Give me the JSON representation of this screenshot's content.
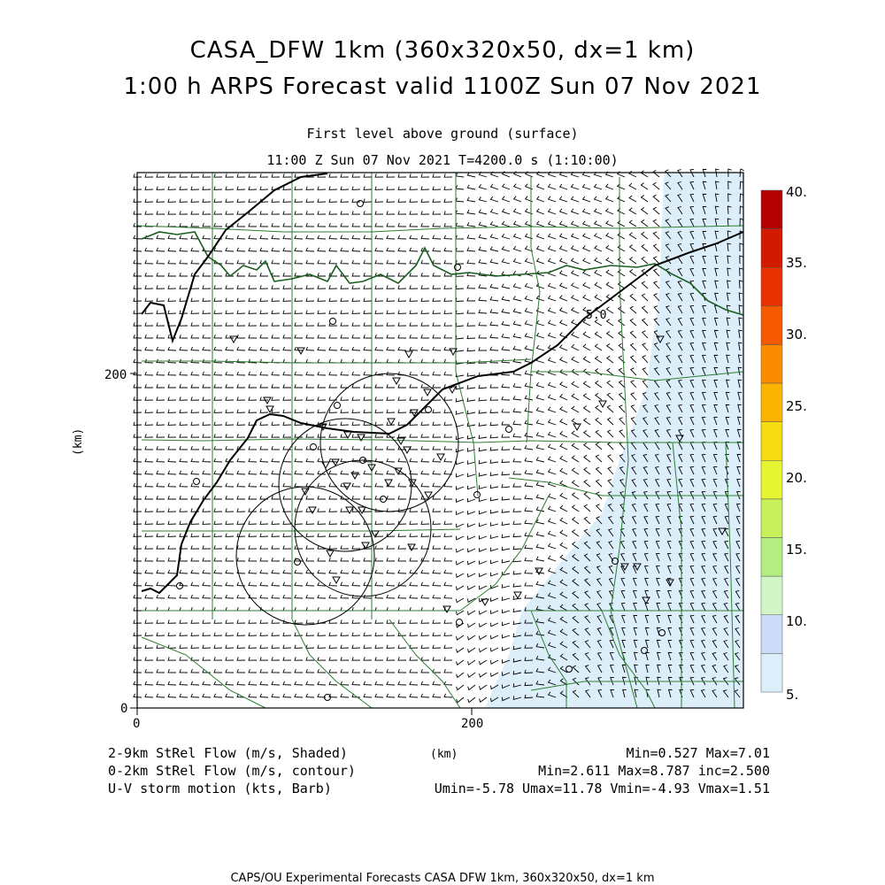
{
  "title": {
    "line1": "CASA_DFW 1km (360x320x50, dx=1 km)",
    "line2": "1:00 h ARPS Forecast valid 1100Z Sun 07 Nov 2021"
  },
  "subtitle": {
    "level": "First level above ground (surface)",
    "time": "11:00 Z Sun 07 Nov 2021    T=4200.0 s (1:10:00)"
  },
  "axes": {
    "x_label": "(km)",
    "y_label": "(km)",
    "x_ticks": [
      "0",
      "200"
    ],
    "y_ticks": [
      "0",
      "200"
    ]
  },
  "colorbar": {
    "labels": [
      "40.",
      "35.",
      "30.",
      "25.",
      "20.",
      "15.",
      "10.",
      "5."
    ],
    "colors": [
      "#b30000",
      "#d21a00",
      "#e83000",
      "#f55a00",
      "#fb8c00",
      "#fbb400",
      "#f5dc10",
      "#e6f532",
      "#c8f05a",
      "#b4ee82",
      "#d2f6c8",
      "#ccdcf8",
      "#dceefa"
    ]
  },
  "legend": {
    "shaded": "2-9km StRel Flow (m/s, Shaded)",
    "contour": "0-2km StRel Flow (m/s, contour)",
    "barb": "U-V storm motion (kts, Barb)",
    "shaded_stats": "Min=0.527 Max=7.01",
    "contour_stats": "Min=2.611 Max=8.787 inc=2.500",
    "barb_stats": "Umin=-5.78 Umax=11.78 Vmin=-4.93 Vmax=1.51",
    "center_label": "(km)"
  },
  "contour_label": "5.0",
  "footer": "CAPS/OU Experimental Forecasts  CASA DFW 1km, 360x320x50, dx=1 km",
  "colors": {
    "counties": "#2e7d32",
    "barbs": "#000000",
    "shade_light": "#dceefa"
  }
}
